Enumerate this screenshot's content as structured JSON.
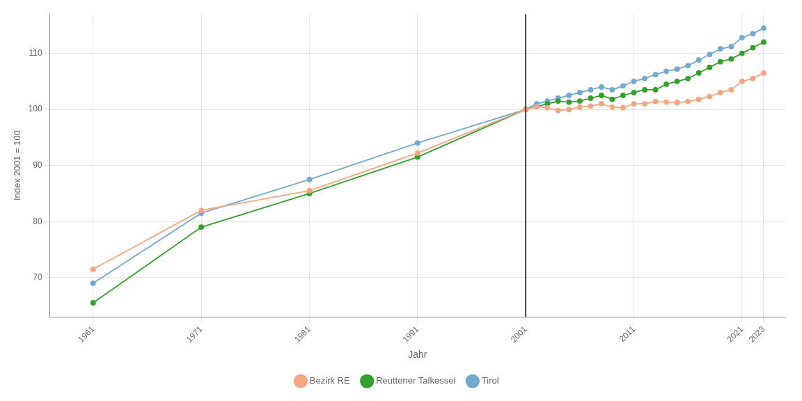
{
  "chart_data": {
    "type": "line",
    "x_label": "Jahr",
    "y_label": "Index 2001 = 100",
    "x": [
      1961,
      1971,
      1981,
      1991,
      2001,
      2002,
      2003,
      2004,
      2005,
      2006,
      2007,
      2008,
      2009,
      2010,
      2011,
      2012,
      2013,
      2014,
      2015,
      2016,
      2017,
      2018,
      2019,
      2020,
      2021,
      2022,
      2023
    ],
    "series": [
      {
        "name": "Bezirk RE",
        "color": "#F4A582",
        "marker": "circle",
        "values": [
          71.5,
          82.0,
          85.5,
          92.2,
          100.0,
          100.5,
          100.3,
          99.8,
          100.0,
          100.4,
          100.6,
          101.0,
          100.4,
          100.3,
          101.0,
          101.0,
          101.4,
          101.3,
          101.2,
          101.4,
          101.8,
          102.3,
          103.0,
          103.5,
          105.0,
          105.5,
          106.5
        ]
      },
      {
        "name": "Reuttener Talkessel",
        "color": "#33a02c",
        "marker": "circle",
        "values": [
          65.5,
          79.0,
          85.0,
          91.5,
          100.0,
          100.5,
          101.0,
          101.5,
          101.3,
          101.5,
          102.0,
          102.5,
          101.8,
          102.5,
          103.0,
          103.5,
          103.5,
          104.5,
          105.0,
          105.5,
          106.5,
          107.5,
          108.5,
          109.0,
          110.0,
          111.0,
          112.0
        ]
      },
      {
        "name": "Tirol",
        "color": "#74a9cf",
        "marker": "circle",
        "values": [
          69.0,
          81.5,
          87.5,
          94.0,
          100.0,
          101.0,
          101.5,
          102.0,
          102.5,
          103.0,
          103.5,
          104.0,
          103.5,
          104.2,
          105.0,
          105.5,
          106.2,
          106.8,
          107.2,
          107.8,
          108.8,
          109.8,
          110.8,
          111.2,
          112.8,
          113.5,
          114.5
        ]
      }
    ],
    "vlines": [
      2001
    ],
    "xlim": [
      1957,
      2025
    ],
    "xticks": [
      1961,
      1971,
      1981,
      1991,
      2001,
      2011,
      2021,
      2023
    ],
    "ylim": [
      63,
      117
    ],
    "yticks": [
      70,
      80,
      90,
      100,
      110
    ],
    "grid": true,
    "legend": "bottom"
  }
}
